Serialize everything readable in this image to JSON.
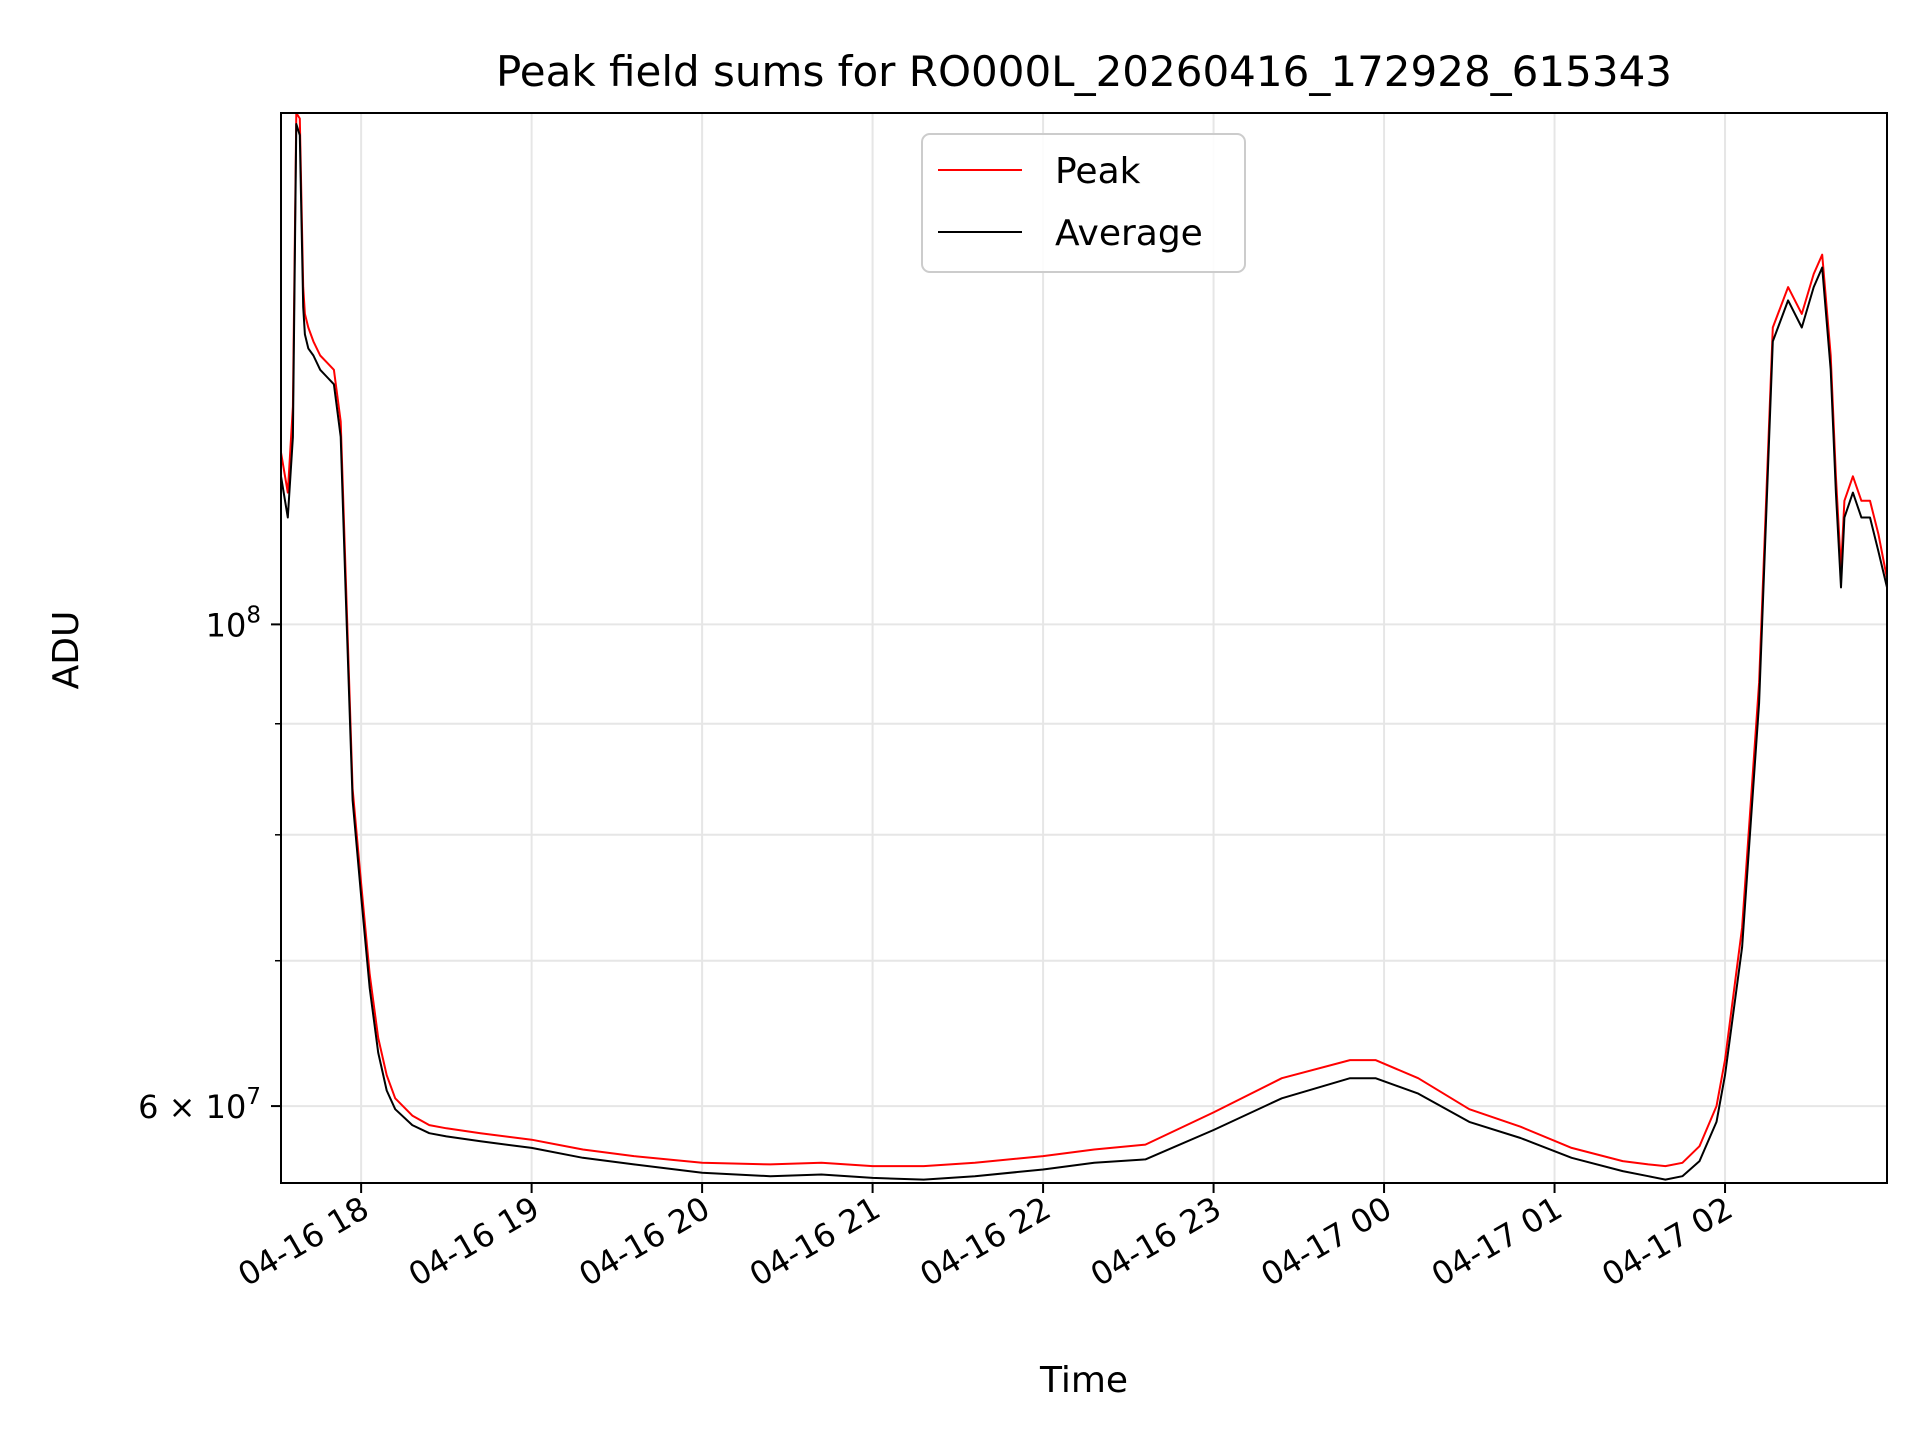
{
  "chart_data": {
    "type": "line",
    "title": "Peak field sums for RO000L_20260416_172928_615343",
    "xlabel": "Time",
    "ylabel": "ADU",
    "yscale": "log",
    "x_range_hours": [
      17.53,
      26.95
    ],
    "ylim": [
      55300000,
      172000000
    ],
    "x_tick_hours": [
      18,
      19,
      20,
      21,
      22,
      23,
      24,
      25,
      26
    ],
    "x_tick_labels": [
      "04-16 18",
      "04-16 19",
      "04-16 20",
      "04-16 21",
      "04-16 22",
      "04-16 23",
      "04-17 00",
      "04-17 01",
      "04-17 02"
    ],
    "y_major_ticks": [
      {
        "value": 60000000,
        "label_base": "6 × 10",
        "label_exp": "7"
      },
      {
        "value": 100000000,
        "label_base": "10",
        "label_exp": "8"
      }
    ],
    "y_minor_ticks": [
      70000000,
      80000000,
      90000000
    ],
    "legend": {
      "placement": "upper center",
      "entries": [
        "Peak",
        "Average"
      ]
    },
    "series": [
      {
        "name": "Average",
        "color": "#000000",
        "x_hours": [
          17.53,
          17.57,
          17.6,
          17.62,
          17.64,
          17.66,
          17.67,
          17.69,
          17.72,
          17.76,
          17.8,
          17.84,
          17.88,
          17.91,
          17.95,
          18.0,
          18.05,
          18.1,
          18.15,
          18.2,
          18.3,
          18.4,
          18.5,
          18.7,
          19.0,
          19.3,
          19.6,
          20.0,
          20.4,
          20.7,
          21.0,
          21.3,
          21.6,
          22.0,
          22.3,
          22.6,
          23.0,
          23.4,
          23.8,
          23.95,
          24.2,
          24.5,
          24.8,
          25.1,
          25.4,
          25.55,
          25.65,
          25.75,
          25.85,
          25.95,
          26.0,
          26.1,
          26.2,
          26.28,
          26.37,
          26.45,
          26.52,
          26.57,
          26.62,
          26.65,
          26.68,
          26.7,
          26.75,
          26.8,
          26.85,
          26.9,
          26.95
        ],
        "values": [
          117000000,
          112000000,
          122000000,
          170000000,
          168000000,
          140000000,
          136000000,
          134000000,
          133000000,
          131000000,
          130000000,
          129000000,
          122000000,
          103000000,
          83000000,
          75000000,
          68000000,
          63500000,
          61000000,
          59800000,
          58800000,
          58300000,
          58100000,
          57800000,
          57400000,
          56800000,
          56400000,
          55900000,
          55700000,
          55800000,
          55600000,
          55500000,
          55700000,
          56100000,
          56500000,
          56700000,
          58500000,
          60500000,
          61800000,
          61800000,
          60800000,
          59000000,
          58000000,
          56800000,
          56000000,
          55700000,
          55500000,
          55700000,
          56600000,
          59000000,
          62000000,
          71000000,
          92000000,
          135000000,
          141000000,
          137000000,
          143000000,
          146000000,
          131000000,
          115000000,
          104000000,
          112000000,
          115000000,
          112000000,
          112000000,
          108000000,
          104000000
        ]
      },
      {
        "name": "Peak",
        "color": "#ff0000",
        "x_hours": [
          17.53,
          17.57,
          17.6,
          17.62,
          17.64,
          17.66,
          17.67,
          17.69,
          17.72,
          17.76,
          17.8,
          17.84,
          17.88,
          17.91,
          17.95,
          18.0,
          18.05,
          18.1,
          18.15,
          18.2,
          18.3,
          18.4,
          18.5,
          18.7,
          19.0,
          19.3,
          19.6,
          20.0,
          20.4,
          20.7,
          21.0,
          21.3,
          21.6,
          22.0,
          22.3,
          22.6,
          23.0,
          23.4,
          23.8,
          23.95,
          24.2,
          24.5,
          24.8,
          25.1,
          25.4,
          25.55,
          25.65,
          25.75,
          25.85,
          25.95,
          26.0,
          26.1,
          26.2,
          26.28,
          26.37,
          26.45,
          26.52,
          26.57,
          26.62,
          26.65,
          26.68,
          26.7,
          26.75,
          26.8,
          26.85,
          26.9,
          26.95
        ],
        "values": [
          120000000,
          115000000,
          126000000,
          172000000,
          171000000,
          143000000,
          139000000,
          137000000,
          135000000,
          133000000,
          132000000,
          131000000,
          124000000,
          105000000,
          84000000,
          76000000,
          69000000,
          64500000,
          62000000,
          60500000,
          59400000,
          58800000,
          58600000,
          58300000,
          57900000,
          57300000,
          56900000,
          56500000,
          56400000,
          56500000,
          56300000,
          56300000,
          56500000,
          56900000,
          57300000,
          57600000,
          59600000,
          61800000,
          63000000,
          63000000,
          61800000,
          59800000,
          58700000,
          57400000,
          56600000,
          56400000,
          56300000,
          56500000,
          57500000,
          60000000,
          63000000,
          72500000,
          94000000,
          137000000,
          143000000,
          139000000,
          145000000,
          148000000,
          133000000,
          117000000,
          106000000,
          114000000,
          117000000,
          114000000,
          114000000,
          110000000,
          105000000
        ]
      }
    ]
  }
}
